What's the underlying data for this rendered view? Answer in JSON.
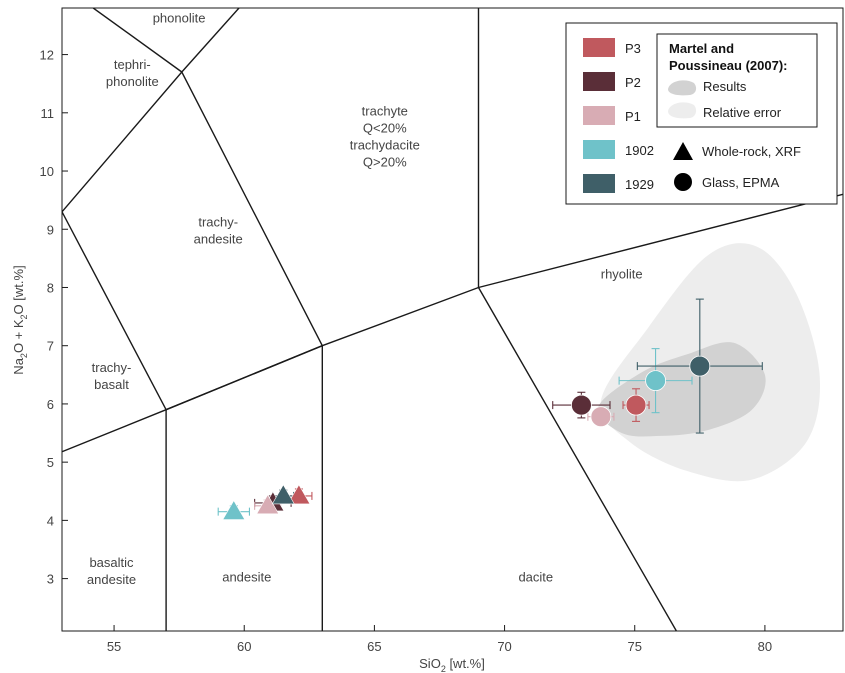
{
  "chart_data": {
    "type": "scatter",
    "title": "",
    "xlabel": {
      "main": "SiO",
      "sub": "2",
      "rest": " [wt.%]"
    },
    "ylabel": {
      "p1": "Na",
      "s1": "2",
      "p2": "O + K",
      "s2": "2",
      "p3": "O  [wt.%]"
    },
    "xlim": [
      53,
      83
    ],
    "ylim": [
      2.1,
      12.8
    ],
    "xticks": [
      "55",
      "60",
      "65",
      "70",
      "75",
      "80"
    ],
    "yticks": [
      "3",
      "4",
      "5",
      "6",
      "7",
      "8",
      "9",
      "10",
      "11",
      "12"
    ],
    "grid": false,
    "field_labels": [
      {
        "lines": [
          "phonolite"
        ],
        "x": 57.5,
        "y": 12.55
      },
      {
        "lines": [
          "tephri-",
          "phonolite"
        ],
        "x": 55.7,
        "y": 11.75
      },
      {
        "lines": [
          "trachyte",
          "Q<20%",
          "trachydacite",
          "Q>20%"
        ],
        "x": 65.4,
        "y": 10.95
      },
      {
        "lines": [
          "trachy-",
          "andesite"
        ],
        "x": 59.0,
        "y": 9.05
      },
      {
        "lines": [
          "rhyolite"
        ],
        "x": 74.5,
        "y": 8.15
      },
      {
        "lines": [
          "trachy-",
          "basalt"
        ],
        "x": 54.9,
        "y": 6.55
      },
      {
        "lines": [
          "basaltic",
          "andesite"
        ],
        "x": 54.9,
        "y": 3.2
      },
      {
        "lines": [
          "andesite"
        ],
        "x": 60.1,
        "y": 2.95
      },
      {
        "lines": [
          "dacite"
        ],
        "x": 71.2,
        "y": 2.95
      }
    ],
    "field_boundaries": [
      [
        [
          53,
          5.18
        ],
        [
          57,
          5.9
        ],
        [
          63,
          7.0
        ],
        [
          69,
          8.0
        ],
        [
          83,
          9.6
        ]
      ],
      [
        [
          57,
          2.1
        ],
        [
          57,
          5.9
        ]
      ],
      [
        [
          63,
          2.1
        ],
        [
          63,
          7.0
        ]
      ],
      [
        [
          57,
          5.9
        ],
        [
          53,
          9.3
        ]
      ],
      [
        [
          57,
          5.9
        ],
        [
          63,
          7.0
        ],
        [
          57.6,
          11.7
        ],
        [
          53,
          9.3
        ]
      ],
      [
        [
          57.6,
          11.7
        ],
        [
          54.2,
          12.8
        ]
      ],
      [
        [
          57.6,
          11.7
        ],
        [
          59.8,
          12.8
        ]
      ],
      [
        [
          69,
          8.0
        ],
        [
          69,
          12.8
        ]
      ],
      [
        [
          69,
          8.0
        ],
        [
          76.6,
          2.1
        ]
      ]
    ],
    "envelopes": {
      "relative_error": [
        [
          73.7,
          6.05
        ],
        [
          75.5,
          7.3
        ],
        [
          77.8,
          8.55
        ],
        [
          79.7,
          8.7
        ],
        [
          81.2,
          7.9
        ],
        [
          82.1,
          6.5
        ],
        [
          81.6,
          5.35
        ],
        [
          79.5,
          4.7
        ],
        [
          77.0,
          4.85
        ],
        [
          74.8,
          5.35
        ]
      ],
      "results": [
        [
          73.6,
          5.95
        ],
        [
          75.3,
          6.55
        ],
        [
          77.0,
          6.85
        ],
        [
          78.8,
          7.05
        ],
        [
          80.0,
          6.5
        ],
        [
          79.5,
          5.9
        ],
        [
          77.8,
          5.55
        ],
        [
          76.0,
          5.45
        ],
        [
          74.5,
          5.5
        ]
      ]
    },
    "series": [
      {
        "name": "P3",
        "color": "#C0595E",
        "glass": {
          "x": 75.05,
          "y": 5.98,
          "xerr": 0.5,
          "yerr": 0.28
        },
        "whole_rock": {
          "x": 62.1,
          "y": 4.42,
          "xerr": 0.5,
          "yerr": 0.12
        }
      },
      {
        "name": "P2",
        "color": "#5A2E38",
        "glass": {
          "x": 72.95,
          "y": 5.98,
          "xerr": 1.1,
          "yerr": 0.22
        },
        "whole_rock": {
          "x": 61.1,
          "y": 4.3,
          "xerr": 0.7,
          "yerr": 0.12
        }
      },
      {
        "name": "P1",
        "color": "#D8ACB4",
        "glass": {
          "x": 73.7,
          "y": 5.78,
          "xerr": 0.5,
          "yerr": 0.15
        },
        "whole_rock": {
          "x": 60.9,
          "y": 4.25,
          "xerr": 0.5,
          "yerr": 0.1
        }
      },
      {
        "name": "1902",
        "color": "#6FC2C9",
        "glass": {
          "x": 75.8,
          "y": 6.4,
          "xerr": 1.4,
          "yerr": 0.55
        },
        "whole_rock": {
          "x": 59.6,
          "y": 4.15,
          "xerr": 0.6,
          "yerr": 0.1
        }
      },
      {
        "name": "1929",
        "color": "#3F5F68",
        "glass": {
          "x": 77.5,
          "y": 6.65,
          "xerr": 2.4,
          "yerr": 1.15
        },
        "whole_rock": {
          "x": 61.5,
          "y": 4.42,
          "xerr": 0.4,
          "yerr": 0.1
        }
      }
    ],
    "legend": {
      "placement": "top-right",
      "reference_title": "Martel and Poussineau (2007):",
      "reference_title_lines": [
        "Martel and",
        "Poussineau (2007):"
      ],
      "results_label": "Results",
      "relative_error_label": "Relative error",
      "triangle_label": "Whole-rock, XRF",
      "circle_label": "Glass, EPMA"
    },
    "colors": {
      "boundary": "#1a1a1a",
      "relative_error_fill": "#ededed",
      "results_fill": "#d2d2d2",
      "text": "#444444"
    }
  }
}
